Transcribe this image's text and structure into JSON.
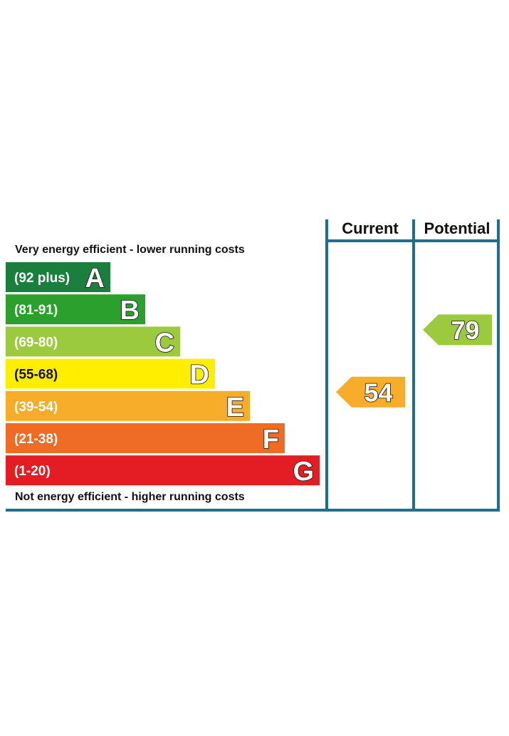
{
  "chart_data": {
    "type": "bar",
    "columns": {
      "current": "Current",
      "potential": "Potential"
    },
    "top_note": "Very energy efficient - lower running costs",
    "bottom_note": "Not energy efficient - higher running costs",
    "bands": [
      {
        "letter": "A",
        "range": "(92 plus)",
        "color": "#1a7f3c",
        "text_dark": false
      },
      {
        "letter": "B",
        "range": "(81-91)",
        "color": "#2ca02c",
        "text_dark": false
      },
      {
        "letter": "C",
        "range": "(69-80)",
        "color": "#9bca3e",
        "text_dark": false
      },
      {
        "letter": "D",
        "range": "(55-68)",
        "color": "#ffee00",
        "text_dark": true
      },
      {
        "letter": "E",
        "range": "(39-54)",
        "color": "#f7ad2a",
        "text_dark": false
      },
      {
        "letter": "F",
        "range": "(21-38)",
        "color": "#ee6c25",
        "text_dark": false
      },
      {
        "letter": "G",
        "range": "(1-20)",
        "color": "#e31d23",
        "text_dark": false
      }
    ],
    "current": {
      "value": 54,
      "band": "E",
      "color": "#f7ad2a"
    },
    "potential": {
      "value": 79,
      "band": "C",
      "color": "#9bca3e"
    },
    "frame_color": "#1d6f8e"
  }
}
